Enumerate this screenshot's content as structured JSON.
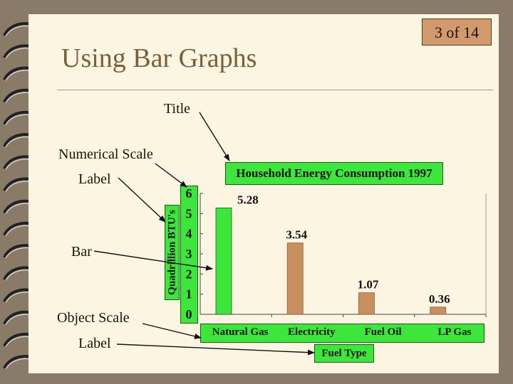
{
  "slide": {
    "page_number": "3 of 14",
    "title": "Using Bar Graphs"
  },
  "annotations": {
    "title": "Title",
    "numerical_scale_line1": "Numerical Scale",
    "numerical_scale_line2": "Label",
    "bar": "Bar",
    "object_scale_line1": "Object Scale",
    "object_scale_line2": "Label"
  },
  "colors": {
    "label_box": "#3de63b",
    "highlight_bar": "#3de63b",
    "bar": "#c9905f",
    "background": "#8a7b69",
    "page": "#fbf5e2"
  },
  "chart_data": {
    "type": "bar",
    "title": "Household Energy Consumption 1997",
    "xlabel": "Fuel Type",
    "ylabel": "Quadrillion BTU's",
    "categories": [
      "Natural Gas",
      "Electricity",
      "Fuel Oil",
      "LP Gas"
    ],
    "values": [
      5.28,
      3.54,
      1.07,
      0.36
    ],
    "value_labels": [
      "5.28",
      "3.54",
      "1.07",
      "0.36"
    ],
    "highlighted_index": 0,
    "ylim": [
      0,
      6
    ],
    "yticks": [
      "0",
      "1",
      "2",
      "3",
      "4",
      "5",
      "6"
    ],
    "grid": false,
    "legend": "none"
  }
}
